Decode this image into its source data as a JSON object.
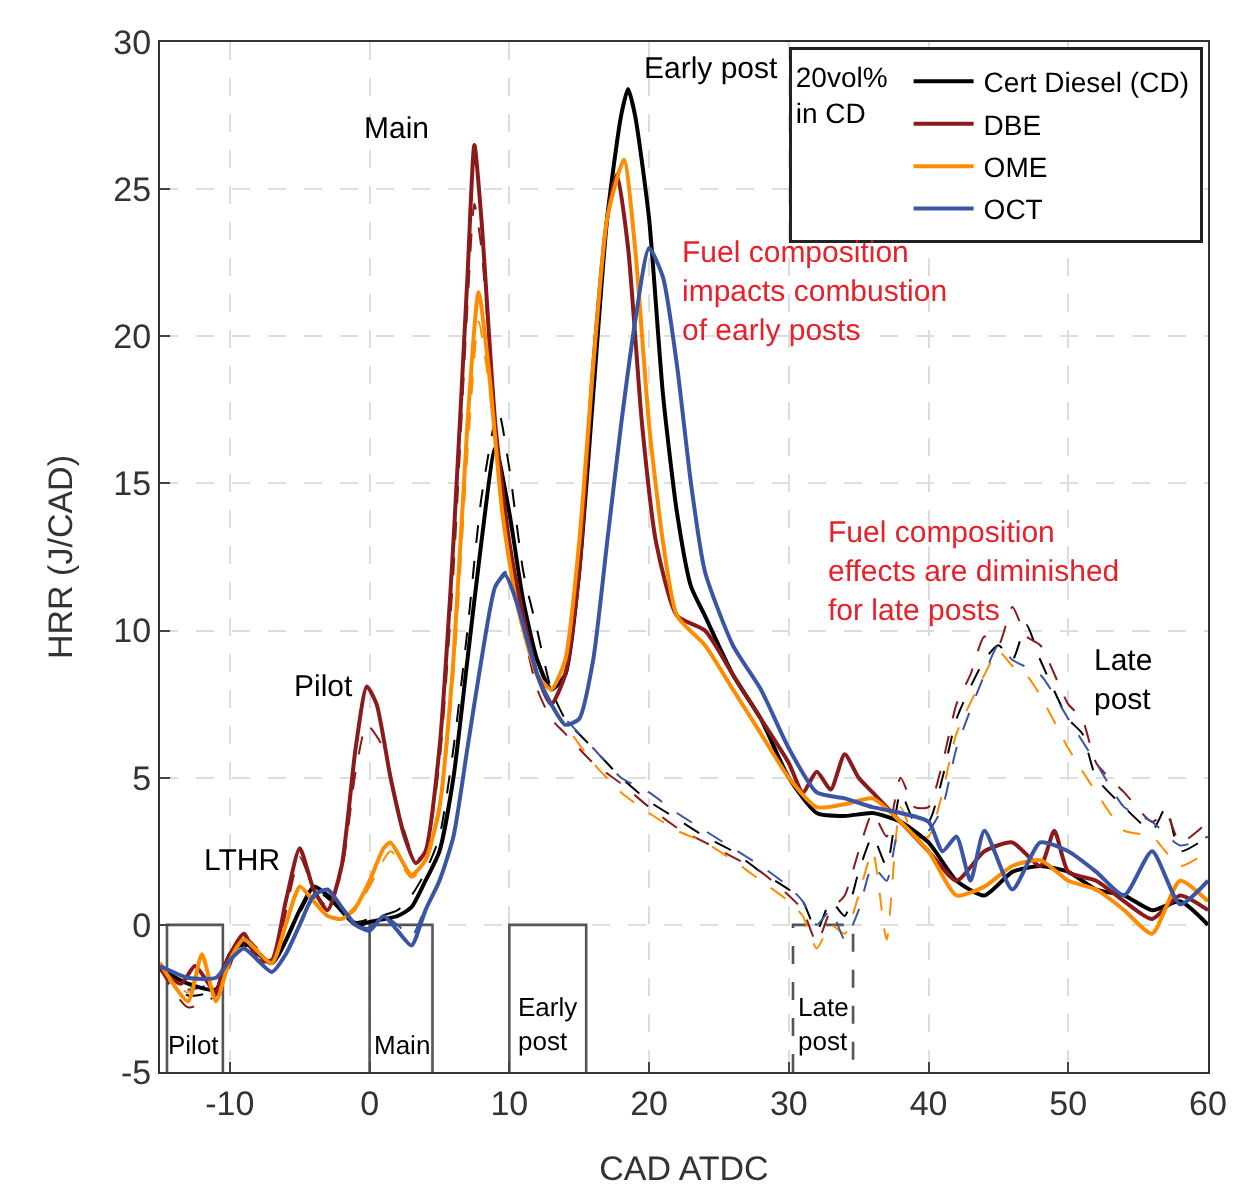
{
  "chart_data": {
    "type": "line",
    "xlabel": "CAD ATDC",
    "ylabel": "HRR (J/CAD)",
    "legend_title": "20vol%\nin CD",
    "legend": "top right",
    "grid": true,
    "xlim": [
      -15,
      60
    ],
    "xticks": [
      -10,
      0,
      10,
      20,
      30,
      40,
      50,
      60
    ],
    "ylim": [
      -5,
      30
    ],
    "yticks": [
      -5,
      0,
      5,
      10,
      15,
      20,
      25,
      30
    ],
    "series": [
      {
        "color": "#555555",
        "line_style": "solid",
        "x": [
          -14.5,
          -14.5,
          -10.5,
          -10.5
        ],
        "values": [
          -5,
          0,
          0,
          -5
        ]
      },
      {
        "color": "#555555",
        "line_style": "solid",
        "x": [
          0,
          0,
          4.5,
          4.5
        ],
        "values": [
          -5,
          0,
          0,
          -5
        ]
      },
      {
        "color": "#555555",
        "line_style": "solid",
        "x": [
          10,
          10,
          15.5,
          15.5
        ],
        "values": [
          -5,
          0,
          0,
          -5
        ]
      },
      {
        "color": "#555555",
        "line_style": "dashed",
        "x": [
          30.3,
          30.3,
          34.6,
          34.6
        ],
        "values": [
          -5,
          0,
          0,
          -5
        ]
      },
      {
        "color": "#000000",
        "line_style": "dashed",
        "x": [
          -15,
          -13,
          -11,
          -10,
          -9,
          -7,
          -5,
          -4,
          -3,
          -1,
          0,
          2,
          3,
          4,
          5,
          6,
          7,
          8,
          9.2,
          10,
          11,
          12,
          13,
          14,
          16,
          18,
          20,
          22,
          24,
          26,
          28,
          30,
          31,
          32,
          33,
          34,
          35,
          36,
          37,
          38,
          39,
          40,
          41,
          42,
          44,
          45,
          46,
          47,
          48,
          50,
          51,
          52,
          54,
          56,
          57,
          58,
          60
        ],
        "values": [
          -1.5,
          -2.4,
          -2.2,
          -1.0,
          -0.7,
          -1.3,
          0.4,
          1.2,
          0.9,
          0.1,
          0.2,
          0.5,
          1.0,
          1.8,
          3,
          6,
          10,
          14.5,
          17.5,
          15.5,
          12,
          10,
          8,
          7,
          6,
          5,
          4.2,
          3.6,
          3.0,
          2.5,
          1.8,
          1.2,
          0.8,
          -0.2,
          0.8,
          0.3,
          1.8,
          3.0,
          2.0,
          4.5,
          3.5,
          3.5,
          5,
          7,
          9,
          9.5,
          9,
          10.2,
          9,
          7,
          6.5,
          5,
          4,
          3.2,
          4.0,
          2.5,
          3
        ]
      },
      {
        "color": "#8b1a1a",
        "line_style": "dashed",
        "x": [
          -15,
          -13,
          -11,
          -10,
          -9,
          -7,
          -5,
          -4,
          -3,
          -2,
          -1,
          -0.2,
          1,
          2,
          3.3,
          4,
          5,
          6,
          7,
          7.5,
          8,
          9,
          10,
          11,
          12,
          13,
          14,
          16,
          18,
          20,
          22,
          24,
          26,
          28,
          30,
          31,
          32,
          33,
          34,
          35,
          36,
          37,
          38,
          39,
          40,
          41,
          42,
          43,
          44,
          45,
          46,
          47,
          48,
          50,
          51,
          52,
          54,
          56,
          57,
          58,
          60
        ],
        "values": [
          -1.5,
          -2.8,
          -2.4,
          -1.4,
          -0.4,
          -1.2,
          2.3,
          1.2,
          0.6,
          1.8,
          5.2,
          6.8,
          6,
          4,
          2.2,
          2.5,
          5.5,
          12,
          21,
          24.5,
          23,
          17,
          13,
          10,
          8,
          7,
          6.5,
          5.5,
          4.8,
          4.0,
          3.3,
          2.8,
          2.3,
          1.8,
          1.0,
          0.5,
          -0.6,
          0.5,
          1.0,
          2.5,
          3.8,
          3.0,
          5,
          4,
          4,
          5.5,
          7.5,
          8.5,
          9.8,
          9.5,
          10.8,
          9.8,
          9.5,
          7.5,
          7,
          5.5,
          4.5,
          3.5,
          3.8,
          2.8,
          3.5
        ]
      },
      {
        "color": "#ff8c00",
        "line_style": "dashed",
        "x": [
          -15,
          -13,
          -12,
          -11,
          -10,
          -9,
          -7,
          -6,
          -5,
          -4,
          -3,
          -2,
          -1,
          0,
          1.5,
          3,
          4,
          5,
          6,
          7,
          7.8,
          8.5,
          9.5,
          10.5,
          12,
          13,
          14,
          16,
          18,
          20,
          22,
          24,
          26,
          28,
          30,
          31,
          32,
          33,
          34,
          35,
          36,
          37,
          38,
          39,
          40,
          41,
          42,
          44,
          45,
          46,
          47,
          48,
          50,
          52,
          54,
          56,
          58,
          60
        ],
        "values": [
          -1.3,
          -2.3,
          -1.1,
          -2.6,
          -1.2,
          -0.6,
          -1.3,
          0,
          1.2,
          0.8,
          0.3,
          0.2,
          0.5,
          1.3,
          2.5,
          1.6,
          2.1,
          3.8,
          8.5,
          16,
          20.5,
          18.5,
          14,
          11,
          8.5,
          7.5,
          6.8,
          5.5,
          4.5,
          3.8,
          3.2,
          2.8,
          2.2,
          1.5,
          0.8,
          0.3,
          -0.8,
          0,
          -0.3,
          1,
          2.5,
          -0.5,
          4,
          3,
          3,
          4.5,
          6.5,
          8.5,
          9.3,
          8.8,
          8.5,
          7.8,
          6,
          4.5,
          3.2,
          3,
          2,
          2.5
        ]
      },
      {
        "color": "#3a55a4",
        "line_style": "dashed",
        "x": [
          -15,
          -13,
          -11,
          -10,
          -9,
          -7,
          -6,
          -5,
          -4,
          -3,
          -2,
          -1,
          0,
          1,
          2,
          3,
          4,
          5,
          6,
          7,
          8,
          9,
          9.7,
          10.5,
          12,
          13,
          14,
          16,
          18,
          20,
          22,
          24,
          26,
          28,
          30,
          31,
          32,
          33,
          34,
          35,
          36,
          37,
          38,
          39,
          40,
          41,
          42,
          44,
          45,
          46,
          48,
          50,
          52,
          54,
          56,
          58,
          60
        ],
        "values": [
          -1.4,
          -2.2,
          -1.9,
          -1.2,
          -0.8,
          -1.6,
          -1.0,
          0,
          0.9,
          1.0,
          0.5,
          0,
          -0.1,
          0.3,
          0,
          -0.4,
          0.6,
          1.5,
          3,
          6,
          9,
          11.5,
          12,
          11,
          8.5,
          7.5,
          7,
          6,
          5,
          4.5,
          3.8,
          3.2,
          2.6,
          2.0,
          1.3,
          0.8,
          0,
          0.5,
          -0.5,
          0.5,
          2.0,
          1.5,
          3.5,
          3.0,
          3.2,
          4,
          6,
          8.5,
          9.5,
          9.0,
          8.5,
          7,
          5.5,
          4,
          3.5,
          2.7,
          3
        ]
      },
      {
        "name": "Cert Diesel (CD)",
        "color": "#000000",
        "line_style": "solid",
        "x": [
          -15,
          -13,
          -11,
          -10,
          -9,
          -7,
          -5,
          -4,
          -3,
          -1,
          0,
          2,
          3,
          4,
          5,
          6,
          7,
          8,
          9,
          10,
          11,
          12,
          13,
          14,
          15,
          16,
          17,
          18,
          18.5,
          19,
          20,
          21,
          22,
          23,
          24,
          26,
          28,
          30,
          32,
          34,
          36,
          38,
          40,
          42,
          44,
          46,
          48,
          50,
          52,
          54,
          56,
          58,
          60
        ],
        "values": [
          -1.5,
          -2.0,
          -2.2,
          -1.0,
          -0.6,
          -1.3,
          0.5,
          1.3,
          1.0,
          0.0,
          0.1,
          0.3,
          0.6,
          1.5,
          2.5,
          5,
          9,
          13,
          16.2,
          14,
          11,
          9,
          8,
          8.5,
          12,
          18,
          24,
          27.5,
          28.4,
          27.5,
          24,
          18,
          14,
          11.5,
          10.5,
          8.5,
          7,
          5,
          3.8,
          3.7,
          3.8,
          3.5,
          2.8,
          1.5,
          1.0,
          1.8,
          2.0,
          1.8,
          1.2,
          1.0,
          0.5,
          0.8,
          0
        ]
      },
      {
        "name": "DBE",
        "color": "#8b1a1a",
        "line_style": "solid",
        "x": [
          -15,
          -13.5,
          -12.5,
          -11,
          -10.5,
          -9,
          -8,
          -7,
          -6,
          -5,
          -4,
          -3,
          -2,
          -1,
          -0.2,
          0.5,
          1.5,
          2.5,
          3.3,
          4,
          5,
          6,
          7,
          7.5,
          8,
          9,
          10,
          11,
          12,
          13,
          14,
          15,
          16,
          17,
          17.7,
          18.5,
          19.5,
          20.5,
          22,
          24,
          26,
          28,
          30,
          31,
          32,
          33,
          34,
          35,
          36,
          38,
          40,
          42,
          44,
          46,
          48,
          49,
          50,
          52,
          54,
          56,
          58,
          60
        ],
        "values": [
          -1.5,
          -2.0,
          -1.4,
          -2.3,
          -1.5,
          -0.3,
          -1.2,
          -1.2,
          0.8,
          2.6,
          1.2,
          0.5,
          2.0,
          6.0,
          8.1,
          7.5,
          5,
          3,
          2.1,
          2.5,
          6,
          13,
          22,
          26.5,
          24,
          17,
          13,
          10.5,
          8.5,
          7.5,
          8.5,
          12,
          19,
          24,
          25.5,
          23,
          17,
          13,
          10.5,
          10,
          8.5,
          7,
          5.5,
          4.5,
          5.2,
          4.6,
          5.8,
          5.0,
          4.5,
          3.5,
          2.5,
          1.5,
          2.5,
          2.8,
          2.0,
          3.2,
          1.8,
          1.5,
          0.8,
          0.2,
          1.0,
          0.5
        ]
      },
      {
        "name": "OME",
        "color": "#ff8c00",
        "line_style": "solid",
        "x": [
          -15,
          -13,
          -12,
          -11,
          -10,
          -9,
          -7,
          -6,
          -5,
          -4,
          -3,
          -2,
          -1,
          0,
          1,
          1.5,
          3,
          4,
          5,
          6,
          7,
          7.8,
          8.5,
          9.5,
          10.5,
          12,
          13,
          14,
          15,
          16,
          17,
          18.2,
          19,
          20,
          21,
          22,
          24,
          26,
          28,
          30,
          32,
          34,
          36,
          38,
          40,
          42,
          44,
          46,
          48,
          50,
          52,
          54,
          56,
          58,
          60
        ],
        "values": [
          -1.3,
          -2.6,
          -1.0,
          -2.6,
          -1.2,
          -0.5,
          -1.3,
          0,
          1.3,
          0.8,
          0.3,
          0.2,
          0.6,
          1.5,
          2.6,
          2.8,
          1.7,
          2.2,
          4,
          9,
          17,
          21.5,
          19,
          14,
          11,
          8.5,
          8,
          9,
          13,
          19,
          24,
          26,
          23,
          17,
          13,
          10.5,
          9.5,
          8,
          6.5,
          5,
          4,
          4.1,
          4.3,
          3.5,
          2.5,
          1.0,
          1.3,
          2.0,
          2.2,
          1.5,
          1.2,
          0.5,
          -0.3,
          1.5,
          0.8
        ]
      },
      {
        "name": "OCT",
        "color": "#3a55a4",
        "line_style": "solid",
        "x": [
          -15,
          -13,
          -11,
          -10,
          -9,
          -7,
          -6,
          -5,
          -4,
          -3,
          -2,
          -1,
          0,
          1,
          2,
          3,
          4,
          5,
          6,
          7,
          8,
          9,
          9.7,
          10.5,
          12,
          13,
          14,
          15,
          16,
          17,
          18,
          19,
          20,
          21,
          22,
          23,
          24,
          26,
          28,
          30,
          32,
          34,
          36,
          38,
          40,
          41,
          42,
          43,
          44,
          46,
          48,
          50,
          52,
          54,
          56,
          58,
          60
        ],
        "values": [
          -1.4,
          -1.8,
          -1.8,
          -1.2,
          -0.8,
          -1.6,
          -1,
          0,
          1.0,
          1.2,
          0.6,
          0.0,
          -0.2,
          0.3,
          -0.2,
          -0.7,
          0.5,
          1.5,
          3,
          6,
          9,
          11.5,
          11.9,
          11,
          8.5,
          7.5,
          6.8,
          7,
          9,
          13,
          17,
          20.5,
          23,
          22,
          19,
          15,
          12,
          9.5,
          8,
          6,
          4.5,
          4.3,
          4.0,
          3.8,
          3.5,
          2.5,
          3.0,
          1.5,
          3.2,
          1.2,
          2.8,
          2.5,
          1.8,
          1.0,
          2.5,
          0.7,
          1.5
        ]
      }
    ],
    "annotations": [
      {
        "text": "Main",
        "x": 7.5,
        "y": 26.5
      },
      {
        "text": "Early post",
        "x": 18.5,
        "y": 28.4
      },
      {
        "text": "Pilot",
        "x": -0.2,
        "y": 8.1
      },
      {
        "text": "LTHR",
        "x": -5,
        "y": 2.6
      },
      "Late\npost",
      "Pilot",
      "Main",
      "Early\npost",
      "Late\npost",
      "Fuel composition\nimpacts combustion\nof early posts",
      "Fuel composition\neffects are diminished\nfor late posts"
    ]
  }
}
